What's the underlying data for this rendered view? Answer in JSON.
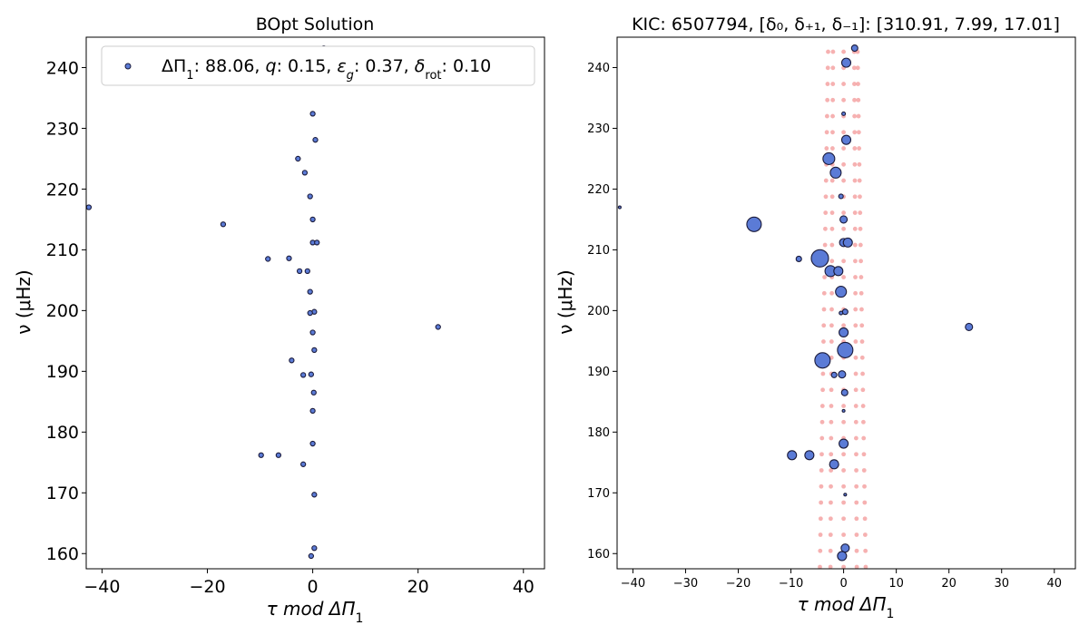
{
  "chart_data": [
    {
      "type": "scatter",
      "title": "BOpt Solution",
      "xlabel": "τ mod ΔΠ",
      "xlabel_sub": "1",
      "ylabel": "ν (μHz)",
      "xlim": [
        -43,
        44
      ],
      "ylim": [
        157.5,
        245
      ],
      "xticks": [
        -40,
        -20,
        0,
        20,
        40
      ],
      "yticks": [
        160,
        170,
        180,
        190,
        200,
        210,
        220,
        230,
        240
      ],
      "xtick_labels": [
        "−40",
        "−20",
        "0",
        "20",
        "40"
      ],
      "ytick_labels": [
        "160",
        "170",
        "180",
        "190",
        "200",
        "210",
        "220",
        "230",
        "240"
      ],
      "grid": false,
      "legend": {
        "placement": "top-right",
        "text": {
          "dp": "ΔΠ",
          "dp_sub": "1",
          "dp_val": ": 88.06, ",
          "q": "q",
          "q_val": ": 0.15, ",
          "eps": "ε",
          "eps_sub": "g",
          "eps_val": ": 0.37, ",
          "delta": "δ",
          "delta_sub": "rot",
          "delta_val": ": 0.10"
        }
      },
      "marker_color": "#5b7bd6",
      "marker_edge": "#1a1a3a",
      "series": [
        {
          "points": [
            [
              -42.5,
              217
            ],
            [
              -17,
              214.2
            ],
            [
              -8.5,
              208.5
            ],
            [
              -4.5,
              208.6
            ],
            [
              -2.5,
              206.5
            ],
            [
              -1,
              206.5
            ],
            [
              0,
              211.2
            ],
            [
              0.8,
              211.2
            ],
            [
              0,
              215
            ],
            [
              -0.5,
              218.8
            ],
            [
              -1.5,
              222.7
            ],
            [
              -2.8,
              225
            ],
            [
              0.5,
              228.1
            ],
            [
              0,
              232.4
            ],
            [
              2.1,
              243.2
            ],
            [
              -0.5,
              203.1
            ],
            [
              0.3,
              199.8
            ],
            [
              -0.5,
              199.6
            ],
            [
              0,
              196.4
            ],
            [
              0.3,
              193.5
            ],
            [
              -4,
              191.8
            ],
            [
              -0.3,
              189.5
            ],
            [
              -1.8,
              189.4
            ],
            [
              0.2,
              186.5
            ],
            [
              0,
              183.5
            ],
            [
              0,
              178.1
            ],
            [
              -9.8,
              176.2
            ],
            [
              -6.5,
              176.2
            ],
            [
              -1.8,
              174.7
            ],
            [
              0.3,
              169.7
            ],
            [
              0.3,
              160.9
            ],
            [
              -0.3,
              159.6
            ],
            [
              23.8,
              197.3
            ]
          ]
        }
      ]
    },
    {
      "type": "scatter",
      "title": "KIC: 6507794, [δ₀, δ₊₁, δ₋₁]: [310.91, 7.99, 17.01]",
      "xlabel": "τ mod ΔΠ",
      "xlabel_sub": "1",
      "ylabel": "ν (μHz)",
      "xlim": [
        -43,
        44
      ],
      "ylim": [
        157.5,
        245
      ],
      "xticks": [
        -40,
        -30,
        -20,
        -10,
        0,
        10,
        20,
        30,
        40
      ],
      "yticks": [
        160,
        170,
        180,
        190,
        200,
        210,
        220,
        230,
        240
      ],
      "xtick_labels": [
        "−40",
        "−30",
        "−20",
        "−10",
        "0",
        "10",
        "20",
        "30",
        "40"
      ],
      "ytick_labels": [
        "160",
        "170",
        "180",
        "190",
        "200",
        "210",
        "220",
        "230",
        "240"
      ],
      "grid": false,
      "marker_color": "#5b7bd6",
      "marker_edge": "#1a1a3a",
      "ref_color": "#f4a3a3",
      "series": [
        {
          "name": "",
          "points": [
            [
              -42.5,
              217,
              1.5
            ],
            [
              -17,
              214.2,
              8
            ],
            [
              -8.5,
              208.5,
              3
            ],
            [
              -4.5,
              208.6,
              9.5
            ],
            [
              -2.5,
              206.5,
              6
            ],
            [
              -1,
              206.5,
              5
            ],
            [
              0,
              211.2,
              4.5
            ],
            [
              0.8,
              211.2,
              5
            ],
            [
              0,
              215,
              4
            ],
            [
              -0.5,
              218.8,
              2.5
            ],
            [
              -1.5,
              222.7,
              6
            ],
            [
              -2.8,
              225,
              6.5
            ],
            [
              0.5,
              228.1,
              5
            ],
            [
              0,
              232.4,
              2
            ],
            [
              2.1,
              243.2,
              3.5
            ],
            [
              0.5,
              240.8,
              5
            ],
            [
              -0.5,
              203.1,
              6
            ],
            [
              0.3,
              199.8,
              3
            ],
            [
              -0.5,
              199.6,
              2
            ],
            [
              0,
              196.4,
              5
            ],
            [
              0.3,
              193.5,
              8.5
            ],
            [
              -4,
              191.8,
              8.5
            ],
            [
              -0.3,
              189.5,
              4
            ],
            [
              -1.8,
              189.4,
              3
            ],
            [
              0.2,
              186.5,
              3.5
            ],
            [
              0,
              183.5,
              1.5
            ],
            [
              0,
              178.1,
              5
            ],
            [
              -9.8,
              176.2,
              5
            ],
            [
              -6.5,
              176.2,
              5
            ],
            [
              -1.8,
              174.7,
              5
            ],
            [
              0.3,
              169.7,
              1.5
            ],
            [
              0.3,
              160.9,
              4.5
            ],
            [
              -0.3,
              159.6,
              5
            ],
            [
              23.8,
              197.3,
              4
            ]
          ]
        }
      ]
    }
  ]
}
